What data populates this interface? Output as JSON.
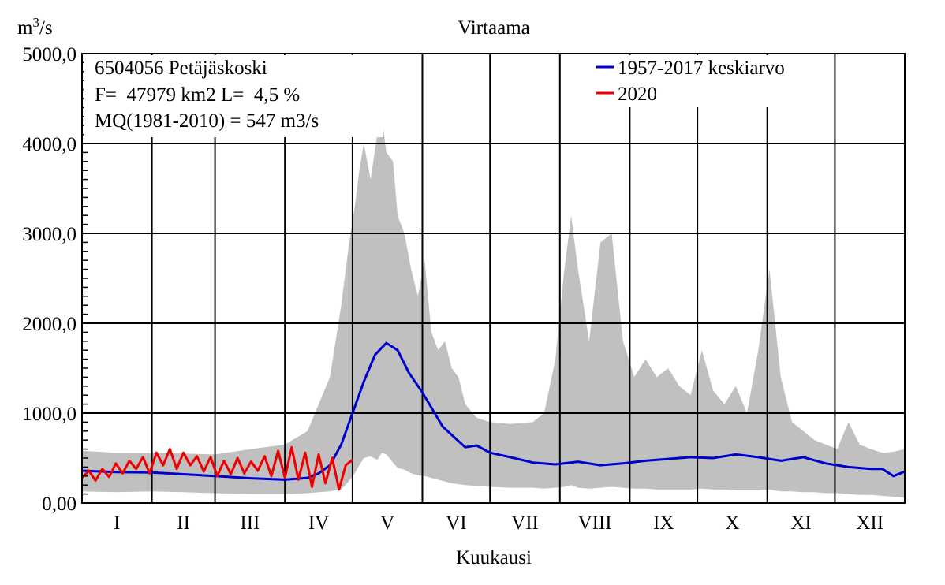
{
  "chart_data": {
    "type": "area",
    "title": "Virtaama",
    "ylabel_base": "m",
    "ylabel_sup": "3",
    "ylabel_rest": "/s",
    "xlabel": "Kuukausi",
    "ylim": [
      0,
      5000
    ],
    "y_ticks": [
      "0,00",
      "1000,0",
      "2000,0",
      "3000,0",
      "4000,0",
      "5000,0"
    ],
    "y_tick_values": [
      0,
      1000,
      2000,
      3000,
      4000,
      5000
    ],
    "month_labels": [
      "I",
      "II",
      "III",
      "IV",
      "V",
      "VI",
      "VII",
      "VIII",
      "IX",
      "X",
      "XI",
      "XII"
    ],
    "month_boundaries_day": [
      0,
      31,
      59,
      90,
      120,
      151,
      181,
      212,
      243,
      273,
      304,
      334,
      365
    ],
    "station": {
      "name": "6504056 Petäjäskoski",
      "area_line": "F=  47979 km2 L=  4,5 %",
      "mq_line": "MQ(1981-2010) = 547 m3/s"
    },
    "legend": [
      {
        "label": "1957-2017 keskiarvo",
        "color": "#0000cc"
      },
      {
        "label": "2020",
        "color": "#ee0000"
      }
    ],
    "series": [
      {
        "name": "1957-2017 keskiarvo",
        "color": "#0000cc",
        "x_day": [
          0,
          15,
          31,
          45,
          59,
          75,
          90,
          100,
          105,
          110,
          115,
          120,
          125,
          130,
          135,
          140,
          145,
          151,
          160,
          170,
          175,
          181,
          190,
          200,
          210,
          220,
          230,
          240,
          250,
          260,
          270,
          280,
          290,
          300,
          310,
          320,
          330,
          340,
          350,
          355,
          360,
          365
        ],
        "values": [
          360,
          345,
          340,
          320,
          300,
          275,
          260,
          280,
          330,
          420,
          650,
          1000,
          1350,
          1650,
          1780,
          1700,
          1450,
          1230,
          850,
          620,
          640,
          560,
          510,
          450,
          430,
          460,
          420,
          440,
          470,
          490,
          510,
          500,
          540,
          510,
          470,
          510,
          440,
          400,
          380,
          380,
          300,
          350
        ]
      },
      {
        "name": "2020",
        "color": "#ee0000",
        "x_day": [
          0,
          3,
          6,
          9,
          12,
          15,
          18,
          21,
          24,
          27,
          30,
          33,
          36,
          39,
          42,
          45,
          48,
          51,
          54,
          57,
          60,
          63,
          66,
          69,
          72,
          75,
          78,
          81,
          84,
          87,
          90,
          93,
          96,
          99,
          102,
          105,
          108,
          111,
          114,
          117,
          120
        ],
        "values": [
          280,
          360,
          250,
          380,
          290,
          440,
          330,
          470,
          380,
          510,
          330,
          560,
          420,
          600,
          380,
          560,
          420,
          520,
          350,
          510,
          300,
          470,
          320,
          500,
          330,
          460,
          360,
          520,
          300,
          580,
          280,
          620,
          260,
          560,
          180,
          540,
          220,
          500,
          150,
          420,
          480
        ]
      }
    ],
    "range_band": {
      "name": "min-max",
      "color": "#c0c0c0",
      "x_day": [
        0,
        15,
        31,
        45,
        59,
        75,
        90,
        100,
        105,
        110,
        115,
        118,
        121,
        123,
        125,
        128,
        131,
        133,
        135,
        138,
        140,
        143,
        146,
        149,
        152,
        155,
        158,
        161,
        164,
        167,
        170,
        175,
        181,
        190,
        200,
        205,
        210,
        214,
        217,
        220,
        225,
        230,
        235,
        240,
        245,
        250,
        255,
        260,
        265,
        270,
        275,
        280,
        285,
        290,
        295,
        300,
        305,
        310,
        315,
        320,
        325,
        330,
        335,
        340,
        345,
        350,
        355,
        360,
        365
      ],
      "max": [
        580,
        560,
        560,
        550,
        540,
        600,
        650,
        800,
        1100,
        1400,
        2200,
        2800,
        3300,
        3700,
        4000,
        3600,
        4100,
        4300,
        3900,
        3800,
        3200,
        3000,
        2600,
        2300,
        2700,
        1900,
        1700,
        1800,
        1500,
        1400,
        1100,
        950,
        900,
        880,
        900,
        1000,
        1600,
        2600,
        3200,
        2600,
        1800,
        2900,
        3000,
        1800,
        1400,
        1600,
        1400,
        1500,
        1300,
        1200,
        1700,
        1250,
        1100,
        1300,
        1000,
        1700,
        2600,
        1400,
        900,
        800,
        700,
        650,
        600,
        900,
        650,
        600,
        560,
        570,
        600
      ],
      "min": [
        130,
        120,
        130,
        120,
        110,
        100,
        100,
        110,
        120,
        130,
        150,
        230,
        330,
        420,
        500,
        520,
        480,
        560,
        540,
        450,
        390,
        370,
        330,
        310,
        300,
        280,
        260,
        240,
        220,
        210,
        200,
        190,
        180,
        170,
        170,
        160,
        170,
        180,
        200,
        170,
        160,
        170,
        180,
        170,
        160,
        160,
        150,
        150,
        150,
        150,
        160,
        150,
        150,
        140,
        140,
        140,
        150,
        130,
        130,
        120,
        120,
        110,
        110,
        100,
        90,
        90,
        80,
        70,
        60
      ]
    }
  }
}
